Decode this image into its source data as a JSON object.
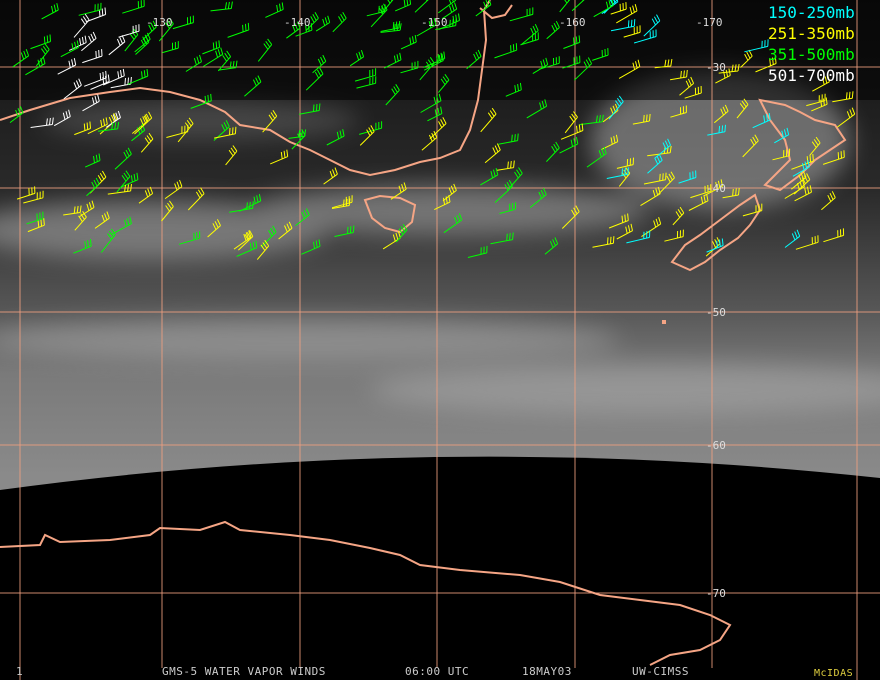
{
  "map": {
    "longitude_labels": [
      "-130",
      "-140",
      "-150",
      "-160",
      "-170"
    ],
    "latitude_labels": [
      "-30",
      "-40",
      "-50",
      "-60",
      "-70"
    ],
    "legend": [
      {
        "label": "150-250mb",
        "color": "#00ffff"
      },
      {
        "label": "251-350mb",
        "color": "#ffff00"
      },
      {
        "label": "351-500mb",
        "color": "#00ff00"
      },
      {
        "label": "501-700mb",
        "color": "#ffffff"
      }
    ],
    "footer": {
      "frame": "1",
      "title": "GMS-5 WATER VAPOR WINDS",
      "time": "06:00 UTC",
      "date": "18MAY03",
      "source": "UW-CIMSS",
      "software": "McIDAS"
    }
  }
}
